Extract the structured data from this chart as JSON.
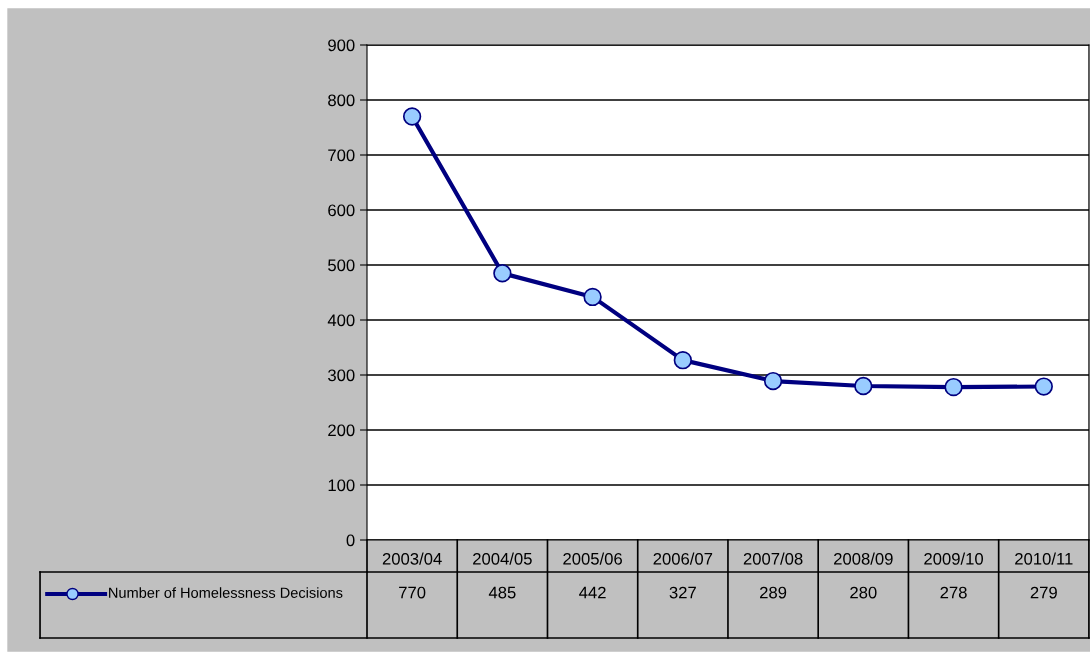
{
  "chart_data": {
    "type": "line",
    "categories": [
      "2003/04",
      "2004/05",
      "2005/06",
      "2006/07",
      "2007/08",
      "2008/09",
      "2009/10",
      "2010/11"
    ],
    "series": [
      {
        "name": "Number of Homelessness Decisions",
        "color": "#000080",
        "values": [
          770,
          485,
          442,
          327,
          289,
          280,
          278,
          279
        ]
      }
    ],
    "ylim": [
      0,
      900
    ],
    "yticks": [
      0,
      100,
      200,
      300,
      400,
      500,
      600,
      700,
      800,
      900
    ],
    "grid": "y",
    "marker": "circle",
    "line_style": "solid",
    "data_labels": true,
    "legend": "bottom left"
  }
}
